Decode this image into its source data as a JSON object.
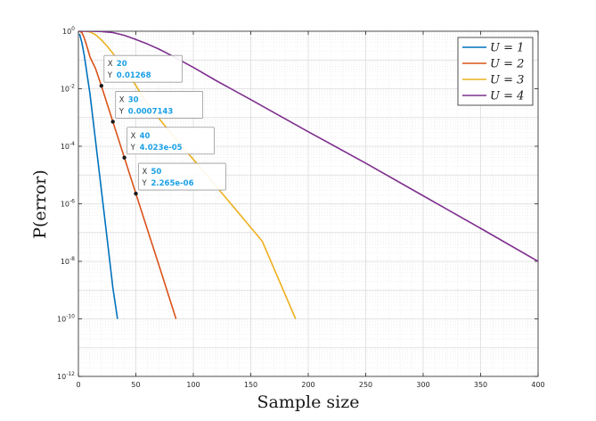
{
  "chart_data": {
    "type": "line",
    "xlabel": "Sample size",
    "ylabel": "P(error)",
    "xlim": [
      0,
      400
    ],
    "ylim": [
      1e-12,
      1
    ],
    "yscale": "log",
    "grid": true,
    "minor_grid": true,
    "legend_position": "top-right",
    "x_ticks": [
      "0",
      "50",
      "100",
      "150",
      "200",
      "250",
      "300",
      "350",
      "400"
    ],
    "y_ticks": [
      {
        "base": "10",
        "exp": "0"
      },
      {
        "base": "10",
        "exp": "-2"
      },
      {
        "base": "10",
        "exp": "-4"
      },
      {
        "base": "10",
        "exp": "-6"
      },
      {
        "base": "10",
        "exp": "-8"
      },
      {
        "base": "10",
        "exp": "-10"
      },
      {
        "base": "10",
        "exp": "-12"
      }
    ],
    "series": [
      {
        "name": "U = 1",
        "color": "#0072BD",
        "x": [
          1,
          3,
          5,
          10,
          15,
          20,
          25,
          30,
          34
        ],
        "y": [
          0.8,
          0.4,
          0.15,
          0.007,
          0.00015,
          3e-06,
          6e-08,
          1.2e-09,
          1e-10
        ]
      },
      {
        "name": "U = 2",
        "color": "#D95319",
        "x": [
          1,
          3,
          5,
          8,
          10,
          15,
          20,
          30,
          40,
          50,
          60,
          70,
          85
        ],
        "y": [
          1,
          0.9,
          0.6,
          0.25,
          0.13,
          0.05,
          0.01268,
          0.0007143,
          4.023e-05,
          2.265e-06,
          1.3e-07,
          7.5e-09,
          1e-10
        ]
      },
      {
        "name": "U = 3",
        "color": "#EDB120",
        "x": [
          1,
          5,
          10,
          15,
          20,
          25,
          30,
          40,
          50,
          60,
          80,
          100,
          120,
          140,
          160,
          189
        ],
        "y": [
          1,
          1,
          0.95,
          0.75,
          0.5,
          0.3,
          0.17,
          0.05,
          0.013,
          0.003,
          0.0003,
          3.5e-05,
          4e-06,
          4.5e-07,
          5e-08,
          1e-10
        ]
      },
      {
        "name": "U = 4",
        "color": "#7E2F8E",
        "x": [
          1,
          10,
          20,
          30,
          40,
          50,
          60,
          70,
          80,
          100,
          120,
          150,
          200,
          250,
          300,
          350,
          400
        ],
        "y": [
          1,
          1,
          0.98,
          0.9,
          0.72,
          0.52,
          0.36,
          0.24,
          0.15,
          0.055,
          0.019,
          0.0042,
          0.00032,
          2.6e-05,
          1.9e-06,
          1.4e-07,
          1e-08
        ]
      }
    ],
    "datatips": [
      {
        "x_key": "X",
        "y_key": "Y",
        "x": 20,
        "x_text": "20",
        "y": 0.01268,
        "y_text": "0.01268"
      },
      {
        "x_key": "X",
        "y_key": "Y",
        "x": 30,
        "x_text": "30",
        "y": 0.0007143,
        "y_text": "0.0007143"
      },
      {
        "x_key": "X",
        "y_key": "Y",
        "x": 40,
        "x_text": "40",
        "y": 4.023e-05,
        "y_text": "4.023e-05"
      },
      {
        "x_key": "X",
        "y_key": "Y",
        "x": 50,
        "x_text": "50",
        "y": 2.265e-06,
        "y_text": "2.265e-06"
      }
    ]
  }
}
